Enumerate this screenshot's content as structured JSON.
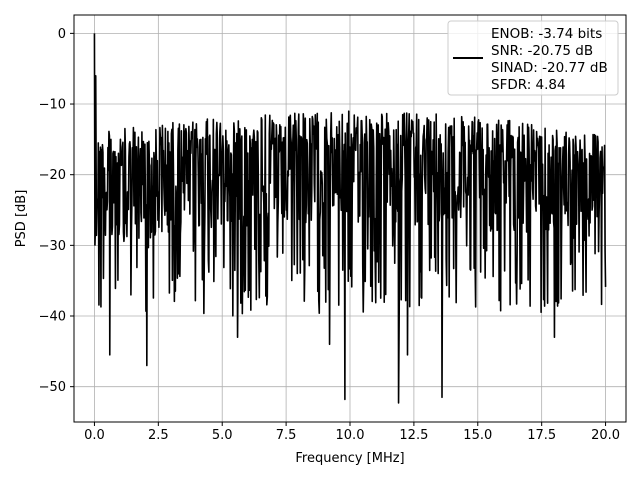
{
  "chart_data": {
    "type": "line",
    "title": "",
    "xlabel": "Frequency [MHz]",
    "ylabel": "PSD [dB]",
    "xlim": [
      -0.8,
      20.8
    ],
    "ylim": [
      -55,
      2.6
    ],
    "x_ticks": [
      0.0,
      2.5,
      5.0,
      7.5,
      10.0,
      12.5,
      15.0,
      17.5,
      20.0
    ],
    "x_tick_labels": [
      "0.0",
      "2.5",
      "5.0",
      "7.5",
      "10.0",
      "12.5",
      "15.0",
      "17.5",
      "20.0"
    ],
    "y_ticks": [
      0,
      -10,
      -20,
      -30,
      -40,
      -50
    ],
    "y_tick_labels": [
      "0",
      "−10",
      "−20",
      "−30",
      "−40",
      "−50"
    ],
    "grid": true,
    "legend_position": "top-right",
    "legend": {
      "lines": [
        "ENOB: -3.74 bits",
        "SNR: -20.75 dB",
        "SINAD: -20.77 dB",
        "SFDR: 4.84"
      ]
    },
    "series": [
      {
        "color": "#000000",
        "x_range": [
          0.0,
          20.0
        ],
        "n_points": 1024,
        "baseline_db": -22,
        "upper_envelope_db": -12,
        "peaks": [
          {
            "x": 0.0,
            "y": 0.0
          },
          {
            "x": 0.05,
            "y": -6.0
          },
          {
            "x": 0.15,
            "y": -15.5
          }
        ],
        "dips": [
          {
            "x": 0.6,
            "y": -45.5
          },
          {
            "x": 2.05,
            "y": -47.0
          },
          {
            "x": 5.6,
            "y": -43.0
          },
          {
            "x": 9.2,
            "y": -44.0
          },
          {
            "x": 9.8,
            "y": -51.8
          },
          {
            "x": 11.9,
            "y": -52.3
          },
          {
            "x": 12.25,
            "y": -45.5
          },
          {
            "x": 13.6,
            "y": -51.5
          },
          {
            "x": 18.0,
            "y": -43.0
          }
        ]
      }
    ]
  },
  "colors": {
    "line": "#000000",
    "grid": "#b0b0b0",
    "axes": "#000000",
    "background": "#ffffff",
    "legend_border": "#cccccc"
  }
}
